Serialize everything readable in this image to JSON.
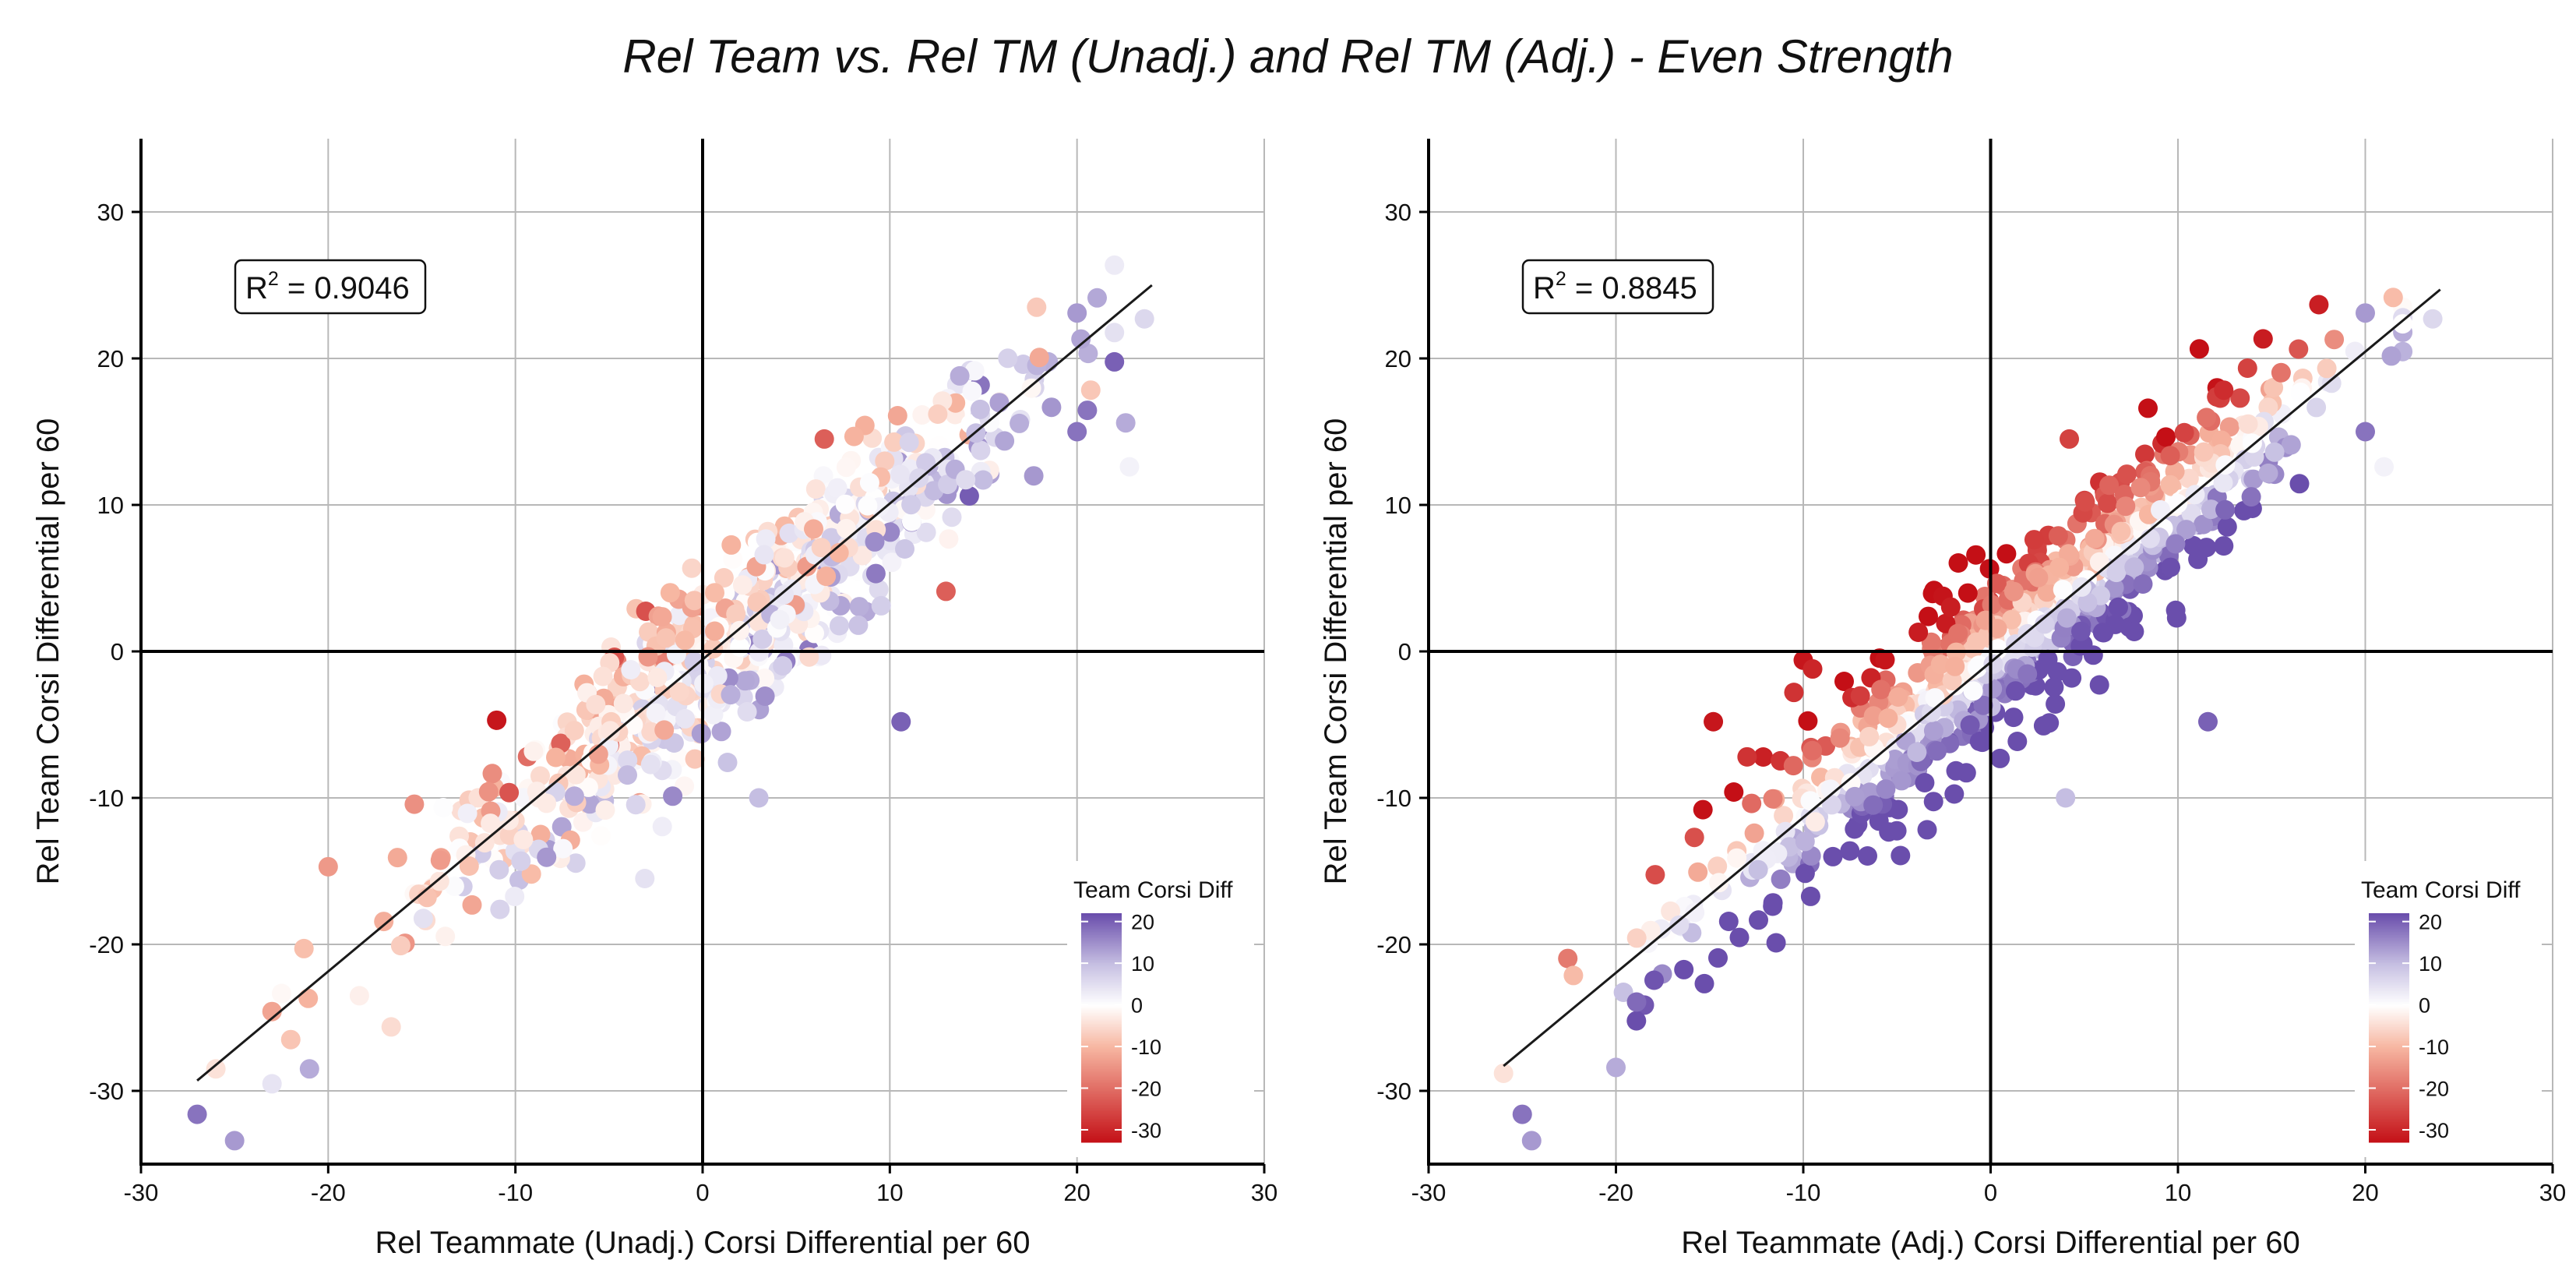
{
  "title": "Rel Team vs. Rel TM (Unadj.) and Rel TM (Adj.) - Even Strength",
  "chart_data": [
    {
      "type": "scatter",
      "xlabel": "Rel Teammate (Unadj.) Corsi Differential per 60",
      "ylabel": "Rel Team Corsi Differential per 60",
      "xlim": [
        -30,
        30
      ],
      "ylim": [
        -35,
        35
      ],
      "x_ticks": [
        "-30",
        "-20",
        "-10",
        "0",
        "10",
        "20",
        "30"
      ],
      "y_ticks": [
        "-30",
        "-20",
        "-10",
        "0",
        "10",
        "20",
        "30"
      ],
      "r2_prefix": "R",
      "r2_exp": "2",
      "r2_value": " = 0.9046",
      "fit_line": {
        "x0": -27,
        "y0": -29.3,
        "x1": 24,
        "y1": 25
      },
      "highlight_points": [
        {
          "x": -27.0,
          "y": -31.6,
          "c": 18
        },
        {
          "x": -25.0,
          "y": -33.4,
          "c": 14
        },
        {
          "x": -26.0,
          "y": -28.5,
          "c": -4
        },
        {
          "x": -21.0,
          "y": -28.5,
          "c": 12
        },
        {
          "x": -22.0,
          "y": -26.5,
          "c": -8
        },
        {
          "x": -20.0,
          "y": -14.7,
          "c": -14
        },
        {
          "x": -11.0,
          "y": -4.7,
          "c": -32
        },
        {
          "x": 10.6,
          "y": -4.8,
          "c": 20
        },
        {
          "x": 13.0,
          "y": 4.1,
          "c": -22
        },
        {
          "x": 20.0,
          "y": 23.1,
          "c": 14
        },
        {
          "x": 22.6,
          "y": 15.6,
          "c": 12
        },
        {
          "x": 23.6,
          "y": 22.7,
          "c": 6
        },
        {
          "x": 22.8,
          "y": 12.6,
          "c": 2
        },
        {
          "x": 20.0,
          "y": 15.0,
          "c": 18
        },
        {
          "x": 6.5,
          "y": 14.5,
          "c": -22
        },
        {
          "x": 3.0,
          "y": -10.0,
          "c": 10
        }
      ]
    },
    {
      "type": "scatter",
      "xlabel": "Rel Teammate (Adj.) Corsi Differential per 60",
      "ylabel": "Rel Team Corsi Differential per 60",
      "xlim": [
        -30,
        30
      ],
      "ylim": [
        -35,
        35
      ],
      "x_ticks": [
        "-30",
        "-20",
        "-10",
        "0",
        "10",
        "20",
        "30"
      ],
      "y_ticks": [
        "-30",
        "-20",
        "-10",
        "0",
        "10",
        "20",
        "30"
      ],
      "r2_prefix": "R",
      "r2_exp": "2",
      "r2_value": " = 0.8845",
      "fit_line": {
        "x0": -26,
        "y0": -28.3,
        "x1": 24,
        "y1": 24.7
      },
      "highlight_points": [
        {
          "x": -26.0,
          "y": -28.8,
          "c": -4
        },
        {
          "x": -25.0,
          "y": -31.6,
          "c": 18
        },
        {
          "x": -24.5,
          "y": -33.4,
          "c": 14
        },
        {
          "x": -20.0,
          "y": -28.4,
          "c": 12
        },
        {
          "x": -14.8,
          "y": -4.8,
          "c": -32
        },
        {
          "x": -13.0,
          "y": -7.2,
          "c": -28
        },
        {
          "x": -10.0,
          "y": -0.6,
          "c": -32
        },
        {
          "x": -9.5,
          "y": -1.2,
          "c": -30
        },
        {
          "x": -10.5,
          "y": -2.8,
          "c": -28
        },
        {
          "x": 4.2,
          "y": 14.5,
          "c": -26
        },
        {
          "x": 11.6,
          "y": -4.8,
          "c": 20
        },
        {
          "x": 20.0,
          "y": 23.1,
          "c": 14
        },
        {
          "x": 23.6,
          "y": 22.7,
          "c": 6
        },
        {
          "x": 20.0,
          "y": 15.0,
          "c": 18
        },
        {
          "x": 21.0,
          "y": 12.6,
          "c": 2
        },
        {
          "x": 4.0,
          "y": -10.0,
          "c": 10
        }
      ]
    }
  ],
  "legend": {
    "title": "Team Corsi Diff",
    "ticks": [
      "20",
      "10",
      "0",
      "-10",
      "-20",
      "-30"
    ],
    "range": [
      -33,
      22
    ],
    "colors": {
      "low": "#c40f16",
      "mid_low": "#f7b7a2",
      "mid": "#ffffff",
      "mid_high": "#c6bfe2",
      "high": "#6a4eac"
    }
  }
}
